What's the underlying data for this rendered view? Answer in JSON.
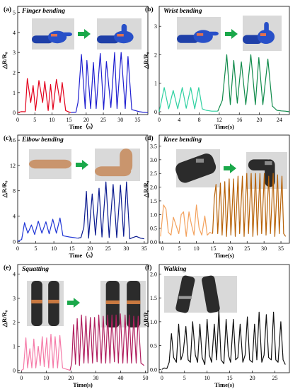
{
  "chart_data": [
    {
      "label": "(a)",
      "title": "Finger bending",
      "type": "line",
      "xlabel": "Time（s）",
      "ylabel": "△R/R₀",
      "xlim": [
        0,
        38
      ],
      "ylim": [
        -0.1,
        5.3
      ],
      "xticks": [
        0,
        5,
        10,
        15,
        20,
        25,
        30,
        35
      ],
      "yticks": [
        0,
        1,
        2,
        3,
        4,
        5
      ],
      "series": [
        {
          "color": "#e3001b",
          "x": [
            0.0,
            1.1,
            2.2,
            2.8,
            3.8,
            4.5,
            5.2,
            6.2,
            7.3,
            7.9,
            8.9,
            9.6,
            10.3,
            11.3,
            12.4,
            13.0,
            14.0,
            14.7,
            15.5
          ],
          "y": [
            0.0,
            0.05,
            0.04,
            1.7,
            0.5,
            1.35,
            0.1,
            1.6,
            0.5,
            1.55,
            0.1,
            1.4,
            0.15,
            1.65,
            0.5,
            1.5,
            0.1,
            0.05,
            0.0
          ]
        },
        {
          "color": "#1f1fd0",
          "x": [
            15.5,
            16.4,
            17.0,
            17.6,
            18.6,
            19.7,
            20.2,
            21.3,
            22.1,
            22.9,
            24.1,
            25.1,
            25.9,
            27.2,
            28.3,
            29.0,
            30.2,
            31.4,
            32.2,
            33.3,
            34.3,
            35.4,
            36.5,
            38.0
          ],
          "y": [
            0.0,
            0.02,
            0.02,
            0.5,
            2.9,
            0.2,
            2.6,
            0.2,
            2.5,
            0.2,
            2.95,
            0.15,
            2.55,
            0.25,
            3.0,
            0.2,
            3.0,
            0.2,
            2.8,
            0.15,
            0.1,
            0.05,
            0.02,
            0.0
          ]
        }
      ]
    },
    {
      "label": "(b)",
      "title": "Wrist bending",
      "type": "line",
      "xlabel": "Time(s)",
      "ylabel": "△R/R₀",
      "xlim": [
        0,
        26
      ],
      "ylim": [
        -0.1,
        3.7
      ],
      "xticks": [
        0,
        4,
        8,
        12,
        16,
        20,
        24
      ],
      "yticks": [
        0,
        1,
        2,
        3
      ],
      "series": [
        {
          "color": "#2fd1a1",
          "x": [
            0.0,
            1.0,
            1.9,
            2.8,
            3.7,
            4.6,
            5.4,
            6.3,
            7.1,
            7.9,
            8.6,
            9.4,
            10.5,
            11.7
          ],
          "y": [
            0.0,
            0.85,
            0.1,
            0.75,
            0.1,
            0.85,
            0.12,
            0.85,
            0.1,
            0.85,
            0.1,
            0.05,
            0.02,
            0.02
          ]
        },
        {
          "color": "#0f8a4a",
          "x": [
            11.7,
            12.6,
            13.5,
            14.2,
            14.9,
            15.6,
            16.4,
            17.3,
            18.3,
            19.2,
            19.9,
            20.7,
            21.7,
            22.6,
            23.5,
            24.4,
            25.2,
            26.0
          ],
          "y": [
            0.02,
            0.4,
            2.0,
            0.25,
            1.8,
            0.3,
            1.75,
            0.25,
            2.0,
            0.25,
            1.9,
            0.25,
            1.85,
            0.2,
            0.05,
            0.03,
            0.02,
            0.0
          ]
        }
      ]
    },
    {
      "label": "(c)",
      "title": "Elbow bending",
      "type": "line",
      "xlabel": "Time（s）",
      "ylabel": "△R/R₀",
      "xlim": [
        0,
        36
      ],
      "ylim": [
        -0.3,
        16.8
      ],
      "xticks": [
        0,
        5,
        10,
        15,
        20,
        25,
        30,
        35
      ],
      "yticks": [
        0,
        4,
        8,
        12,
        16
      ],
      "series": [
        {
          "color": "#2036d6",
          "x": [
            0.0,
            1.1,
            1.9,
            2.8,
            3.8,
            4.7,
            5.7,
            6.7,
            7.8,
            8.7,
            9.7,
            10.7,
            11.7,
            12.5,
            13.4,
            14.4,
            15.5,
            16.6
          ],
          "y": [
            0.0,
            0.3,
            2.95,
            1.3,
            2.6,
            1.1,
            3.2,
            1.3,
            3.1,
            1.2,
            3.5,
            1.3,
            3.7,
            0.9,
            0.8,
            0.7,
            0.6,
            0.5
          ]
        },
        {
          "color": "#0a1a8f",
          "x": [
            16.6,
            17.5,
            18.3,
            19.0,
            19.6,
            20.6,
            21.5,
            22.5,
            23.3,
            24.4,
            25.3,
            26.4,
            27.4,
            28.4,
            29.3,
            30.1,
            31.0,
            31.8,
            32.8,
            34.0,
            35.0
          ],
          "y": [
            0.5,
            0.6,
            2.2,
            7.9,
            0.5,
            7.5,
            1.0,
            8.4,
            0.7,
            9.4,
            0.6,
            9.0,
            0.6,
            8.9,
            0.8,
            9.4,
            0.4,
            0.6,
            0.8,
            0.5,
            0.4
          ]
        }
      ]
    },
    {
      "label": "(d)",
      "title": "Knee bending",
      "type": "line",
      "xlabel": "Time(s)",
      "ylabel": "△R/R₀",
      "xlim": [
        -1,
        37.5
      ],
      "ylim": [
        -0.05,
        3.9
      ],
      "xticks": [
        0,
        5,
        10,
        15,
        20,
        25,
        30,
        35
      ],
      "yticks": [
        0.0,
        0.5,
        1.0,
        1.5,
        2.0,
        2.5,
        3.0,
        3.5
      ],
      "series": [
        {
          "color": "#f3a15c",
          "x": [
            -0.6,
            0.3,
            1.0,
            1.7,
            2.5,
            3.2,
            4.0,
            4.8,
            5.5,
            6.2,
            7.0,
            7.8,
            8.5,
            9.3,
            10.0,
            10.8,
            11.6,
            12.5,
            13.2,
            14.0,
            14.8
          ],
          "y": [
            0.2,
            1.35,
            1.2,
            0.35,
            0.25,
            0.9,
            0.6,
            0.3,
            1.0,
            1.1,
            0.2,
            1.1,
            0.65,
            0.25,
            1.35,
            0.5,
            0.25,
            0.95,
            0.25,
            0.35,
            0.3
          ]
        },
        {
          "color": "#b76208",
          "x": [
            14.8,
            15.3,
            15.8,
            16.3,
            17.1,
            17.6,
            18.4,
            18.9,
            19.7,
            20.2,
            21.0,
            21.5,
            22.3,
            22.8,
            23.6,
            24.1,
            24.9,
            25.4,
            26.2,
            26.7,
            27.5,
            28.0,
            28.8,
            29.3,
            30.1,
            30.6,
            31.4,
            31.9,
            32.7,
            33.2,
            34.0,
            34.5,
            35.3,
            35.8,
            36.4
          ],
          "y": [
            0.3,
            1.6,
            2.1,
            0.3,
            2.15,
            0.25,
            2.2,
            0.2,
            2.3,
            0.25,
            2.3,
            0.2,
            2.4,
            0.3,
            2.4,
            0.2,
            2.5,
            0.3,
            2.5,
            0.2,
            2.5,
            0.25,
            2.5,
            0.3,
            2.5,
            0.25,
            2.4,
            0.3,
            2.5,
            0.2,
            2.45,
            0.3,
            2.4,
            0.3,
            0.2
          ]
        }
      ]
    },
    {
      "label": "(e)",
      "title": "Squatting",
      "type": "line",
      "xlabel": "Time(s)",
      "ylabel": "△R/R₀",
      "xlim": [
        -1.5,
        51
      ],
      "ylim": [
        -0.1,
        4.4
      ],
      "xticks": [
        0,
        10,
        20,
        30,
        40,
        50
      ],
      "yticks": [
        0,
        1,
        2,
        3,
        4
      ],
      "series": [
        {
          "color": "#f57aa8",
          "x": [
            0.0,
            0.8,
            1.8,
            2.5,
            3.4,
            4.2,
            5.0,
            5.8,
            6.8,
            7.6,
            8.4,
            9.2,
            10.2,
            11.0,
            11.9,
            12.8,
            13.6,
            14.6,
            15.5,
            16.6,
            18.1,
            19.6
          ],
          "y": [
            0.0,
            0.05,
            1.35,
            0.1,
            0.9,
            0.1,
            1.3,
            0.1,
            1.0,
            0.2,
            1.4,
            0.15,
            1.35,
            0.1,
            1.5,
            0.1,
            1.4,
            0.1,
            1.45,
            0.1,
            0.05,
            0.0
          ]
        },
        {
          "color": "#b01e5e",
          "x": [
            19.6,
            20.3,
            21.0,
            21.8,
            22.5,
            23.4,
            24.2,
            25.2,
            26.0,
            26.9,
            27.8,
            28.7,
            29.5,
            30.5,
            31.2,
            32.2,
            33.0,
            34.0,
            34.8,
            35.7,
            36.5,
            37.5,
            38.2,
            39.1,
            39.9,
            40.9,
            41.8,
            42.7,
            43.5,
            44.4,
            45.3,
            46.3,
            47.1,
            48.2,
            49.5
          ],
          "y": [
            0.0,
            0.3,
            1.9,
            0.25,
            2.15,
            0.2,
            2.3,
            0.3,
            2.25,
            0.3,
            2.2,
            0.3,
            2.2,
            0.35,
            2.3,
            0.3,
            2.25,
            0.3,
            2.3,
            0.3,
            2.3,
            0.35,
            2.3,
            0.3,
            2.35,
            0.3,
            2.3,
            0.3,
            2.3,
            0.3,
            2.25,
            0.3,
            2.25,
            0.3,
            0.2
          ]
        }
      ]
    },
    {
      "label": "(f)",
      "title": "Walking",
      "type": "line",
      "xlabel": "Time(s)",
      "ylabel": "△R/R₀",
      "xlim": [
        -0.6,
        28.2
      ],
      "ylim": [
        -0.07,
        2.2
      ],
      "xticks": [
        0,
        5,
        10,
        15,
        20,
        25
      ],
      "yticks": [
        0.0,
        0.5,
        1.0,
        1.5,
        2.0
      ],
      "series": [
        {
          "color": "#111111",
          "x": [
            0.0,
            0.5,
            1.1,
            1.6,
            2.1,
            2.6,
            3.2,
            3.7,
            4.2,
            4.7,
            5.3,
            5.8,
            6.3,
            6.8,
            7.4,
            7.9,
            8.4,
            8.9,
            9.5,
            10.0,
            10.5,
            11.0,
            11.6,
            12.1,
            12.6,
            13.1,
            13.7,
            14.2,
            14.7,
            15.2,
            15.8,
            16.3,
            16.8,
            17.3,
            17.9,
            18.4,
            18.9,
            19.4,
            20.0,
            20.5,
            21.0,
            21.5,
            22.1,
            22.6,
            23.1,
            23.6,
            24.2,
            24.7,
            25.2,
            25.7,
            26.3,
            26.8,
            27.3
          ],
          "y": [
            0.0,
            0.03,
            0.02,
            0.15,
            0.75,
            0.25,
            0.15,
            0.95,
            0.2,
            0.35,
            0.9,
            0.2,
            0.15,
            1.0,
            0.3,
            0.15,
            0.95,
            0.25,
            0.1,
            1.05,
            0.3,
            0.15,
            0.95,
            0.2,
            1.25,
            0.2,
            0.12,
            1.05,
            0.3,
            0.15,
            1.05,
            0.2,
            0.25,
            0.95,
            0.15,
            0.3,
            1.1,
            0.2,
            0.15,
            0.95,
            0.2,
            1.2,
            0.15,
            0.3,
            1.15,
            0.25,
            0.2,
            1.2,
            0.2,
            0.15,
            1.0,
            0.2,
            0.1
          ]
        }
      ]
    }
  ],
  "photos": [
    {
      "names": [
        "hand-straight-photo",
        "hand-bent-photo"
      ]
    },
    {
      "names": [
        "wrist-straight-photo",
        "wrist-bent-photo"
      ]
    },
    {
      "names": [
        "elbow-straight-photo",
        "elbow-bent-photo"
      ]
    },
    {
      "names": [
        "knee-straight-photo",
        "knee-bent-photo"
      ]
    },
    {
      "names": [
        "squat-stand-photo",
        "squat-down-photo"
      ]
    },
    {
      "names": [
        "walking-legs-photo"
      ]
    }
  ],
  "arrow_color": "#1aa84a"
}
